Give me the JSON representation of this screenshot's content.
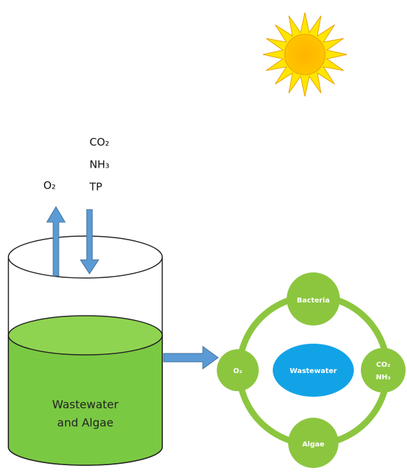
{
  "tank": {
    "label_lines": [
      "Wastewater",
      "and Algae"
    ],
    "gas_out": "O₂",
    "gas_in": [
      "CO₂",
      "NH₃",
      "TP"
    ]
  },
  "cycle": {
    "center": "Wastewater",
    "top": "Bacteria",
    "bottom": "Algae",
    "left": "O₂",
    "right_lines": [
      "CO₂",
      "NH₃"
    ]
  }
}
